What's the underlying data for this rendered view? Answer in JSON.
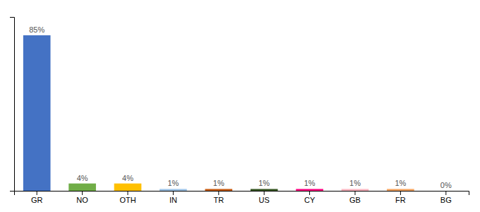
{
  "chart_data": {
    "type": "bar",
    "categories": [
      "GR",
      "NO",
      "OTH",
      "IN",
      "TR",
      "US",
      "CY",
      "GB",
      "FR",
      "BG"
    ],
    "values": [
      85,
      4,
      4,
      1,
      1,
      1,
      1,
      1,
      1,
      0
    ],
    "value_labels": [
      "85%",
      "4%",
      "4%",
      "1%",
      "1%",
      "1%",
      "1%",
      "1%",
      "1%",
      "0%"
    ],
    "colors": [
      "#4472C4",
      "#70AD47",
      "#FFC000",
      "#9DC3E6",
      "#C55A11",
      "#375623",
      "#FF007F",
      "#FFB6C1",
      "#F4A460",
      "#FFFFFF"
    ],
    "ylim": [
      0,
      95
    ],
    "data_labels": true,
    "tick_labels": "x",
    "grid": false
  }
}
